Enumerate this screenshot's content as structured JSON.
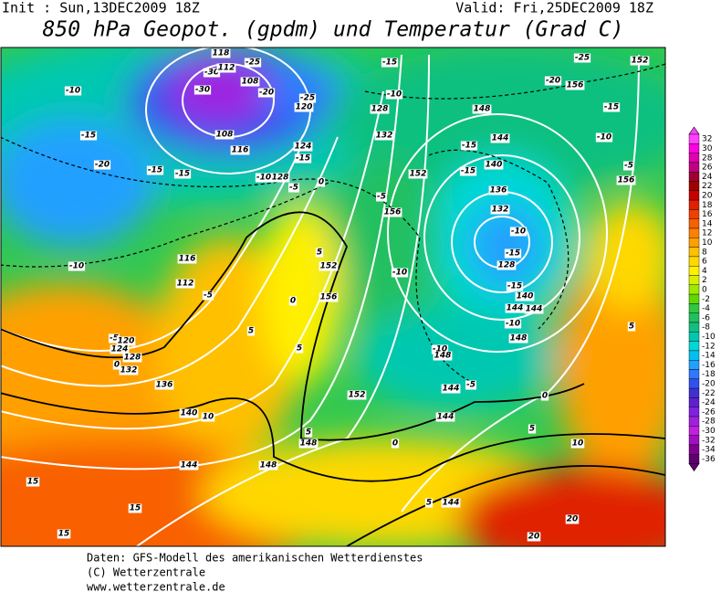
{
  "header": {
    "init": "Init : Sun,13DEC2009 18Z",
    "valid": "Valid: Fri,25DEC2009 18Z",
    "title": "850 hPa Geopot. (gpdm) und Temperatur (Grad C)"
  },
  "colorbar": {
    "levels": [
      32,
      30,
      28,
      26,
      24,
      22,
      20,
      18,
      16,
      14,
      12,
      10,
      8,
      6,
      4,
      2,
      0,
      -2,
      -4,
      -6,
      -8,
      -10,
      -12,
      -14,
      -16,
      -18,
      -20,
      -22,
      -24,
      -26,
      -28,
      -30,
      -32,
      -34,
      -36
    ],
    "colors": [
      "#ff40ff",
      "#ff00e0",
      "#e000b0",
      "#c00080",
      "#a00030",
      "#a00000",
      "#c80000",
      "#e02000",
      "#f04000",
      "#f86000",
      "#ff8000",
      "#ffa000",
      "#ffc000",
      "#ffd800",
      "#fff000",
      "#d8f000",
      "#a0e800",
      "#60d800",
      "#30c840",
      "#20c060",
      "#10c080",
      "#00c8b0",
      "#00d8d8",
      "#00c0f0",
      "#20a0ff",
      "#3078ff",
      "#3050f0",
      "#4030d0",
      "#6020d0",
      "#8020e0",
      "#a020e0",
      "#c020e0",
      "#a010c0",
      "#800090",
      "#600070"
    ]
  },
  "contour_labels": [
    -10,
    -15,
    -20,
    -15,
    -15,
    -10,
    116,
    112,
    -5,
    -5,
    120,
    124,
    128,
    132,
    136,
    0,
    5,
    140,
    10,
    144,
    15,
    15,
    15,
    148,
    148,
    5,
    152,
    5,
    0,
    5,
    152,
    156,
    -10,
    156,
    152,
    -5,
    132,
    128,
    -10,
    -15,
    148,
    144,
    -15,
    -15,
    140,
    136,
    132,
    -10,
    -15,
    128,
    -15,
    140,
    144,
    144,
    -10,
    148,
    -10,
    148,
    144,
    -5,
    144,
    0,
    0,
    5,
    10,
    5,
    144,
    20,
    20,
    5,
    -15,
    -10,
    -5,
    156,
    -20,
    156,
    -25,
    152,
    -30,
    112,
    -25,
    108,
    -30,
    -20,
    -25,
    120,
    108,
    116,
    124,
    -15,
    128,
    -10,
    -5,
    0,
    118
  ],
  "footer": {
    "lines": [
      "Daten: GFS-Modell des amerikanischen Wetterdienstes",
      "(C) Wetterzentrale",
      "www.wetterzentrale.de"
    ]
  }
}
